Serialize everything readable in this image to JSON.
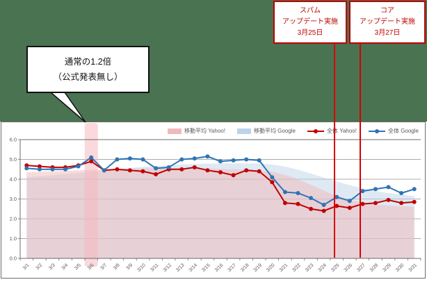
{
  "background_color": "#4A7351",
  "annotations": {
    "callout": {
      "lines": [
        "通常の1.2倍",
        "（公式発表無し）"
      ],
      "points_to": "3/6"
    },
    "events": [
      {
        "lines": [
          "スパム",
          "アップデート実施",
          "3月25日"
        ],
        "date": "3/25",
        "color": "#C00000"
      },
      {
        "lines": [
          "コア",
          "アップデート実施",
          "3月27日"
        ],
        "date": "3/27",
        "color": "#C00000"
      }
    ]
  },
  "chart_data": {
    "type": "line",
    "title": "",
    "xlabel": "",
    "ylabel": "",
    "ylim": [
      0,
      6
    ],
    "yticks": [
      "0.0",
      "1.0",
      "2.0",
      "3.0",
      "4.0",
      "5.0",
      "6.0"
    ],
    "grid": true,
    "legend_position": "top-right",
    "categories": [
      "3/1",
      "3/2",
      "3/3",
      "3/4",
      "3/5",
      "3/6",
      "3/7",
      "3/8",
      "3/9",
      "3/10",
      "3/11",
      "3/12",
      "3/13",
      "3/14",
      "3/15",
      "3/16",
      "3/17",
      "3/18",
      "3/19",
      "3/20",
      "3/21",
      "3/22",
      "3/23",
      "3/24",
      "3/25",
      "3/26",
      "3/27",
      "3/28",
      "3/29",
      "3/30",
      "3/31"
    ],
    "series": [
      {
        "name": "移動平均 Yahoo!",
        "type": "area",
        "color": "#C00000",
        "fill": "#EFB9B9",
        "values": [
          4.35,
          4.38,
          4.4,
          4.42,
          4.45,
          4.48,
          4.5,
          4.52,
          4.54,
          4.55,
          4.55,
          4.55,
          4.55,
          4.55,
          4.55,
          4.52,
          4.5,
          4.48,
          4.45,
          4.38,
          4.22,
          4.0,
          3.72,
          3.42,
          3.15,
          2.95,
          2.82,
          2.72,
          2.67,
          2.63,
          2.6
        ]
      },
      {
        "name": "移動平均 Google",
        "type": "area",
        "color": "#2E74B5",
        "fill": "#BDD3EA",
        "values": [
          4.1,
          4.15,
          4.2,
          4.26,
          4.32,
          4.38,
          4.44,
          4.5,
          4.56,
          4.62,
          4.66,
          4.7,
          4.74,
          4.77,
          4.79,
          4.8,
          4.8,
          4.8,
          4.79,
          4.74,
          4.64,
          4.48,
          4.28,
          4.08,
          3.88,
          3.7,
          3.54,
          3.4,
          3.3,
          3.22,
          3.15
        ]
      },
      {
        "name": "全体 Yahoo!",
        "type": "line",
        "color": "#C00000",
        "values": [
          4.7,
          4.65,
          4.6,
          4.6,
          4.7,
          4.9,
          4.45,
          4.5,
          4.45,
          4.4,
          4.25,
          4.5,
          4.5,
          4.6,
          4.45,
          4.35,
          4.2,
          4.45,
          4.4,
          3.85,
          2.8,
          2.75,
          2.5,
          2.4,
          2.65,
          2.55,
          2.75,
          2.8,
          2.95,
          2.8,
          2.85
        ]
      },
      {
        "name": "全体 Google",
        "type": "line",
        "color": "#2E74B5",
        "values": [
          4.55,
          4.5,
          4.5,
          4.5,
          4.65,
          5.1,
          4.45,
          5.0,
          5.05,
          5.0,
          4.55,
          4.6,
          5.0,
          5.05,
          5.15,
          4.9,
          4.95,
          5.0,
          4.95,
          4.1,
          3.35,
          3.3,
          3.05,
          2.7,
          3.1,
          2.9,
          3.4,
          3.5,
          3.6,
          3.3,
          3.5
        ]
      }
    ],
    "highlight_band": {
      "category": "3/6",
      "color": "#F5B8C0"
    },
    "event_lines": [
      {
        "category": "3/25",
        "color": "#D90000"
      },
      {
        "category": "3/27",
        "color": "#D90000"
      }
    ]
  }
}
